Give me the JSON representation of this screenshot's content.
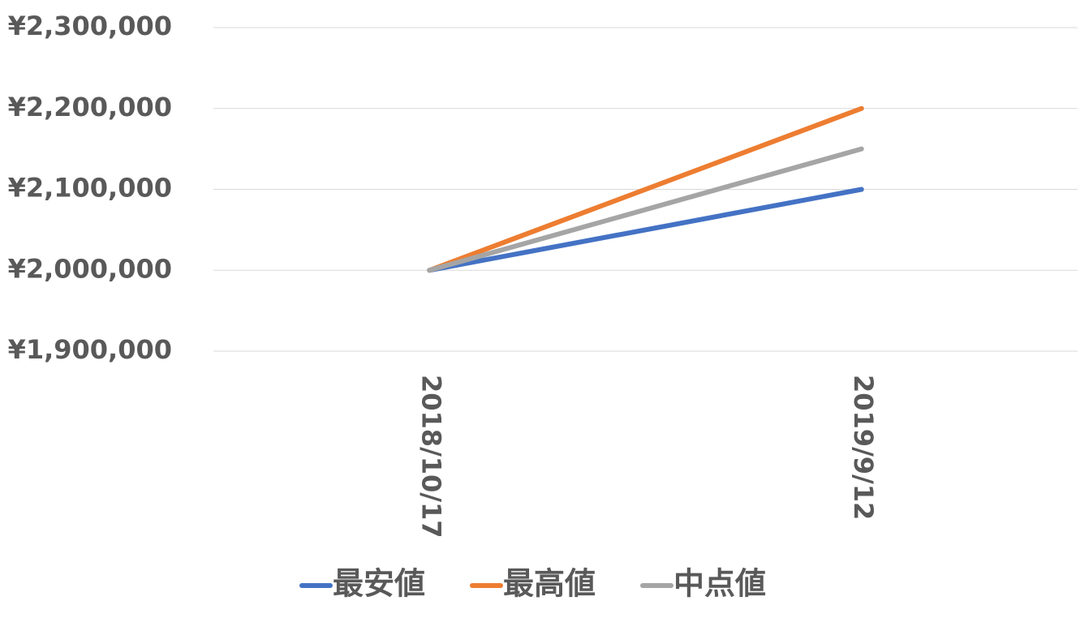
{
  "chart_data": {
    "type": "line",
    "categories": [
      "2018/10/17",
      "2019/9/12"
    ],
    "series": [
      {
        "name": "最安値",
        "color": "#4472c4",
        "values": [
          2000000,
          2100000
        ]
      },
      {
        "name": "最高値",
        "color": "#ed7d31",
        "values": [
          2000000,
          2200000
        ]
      },
      {
        "name": "中点値",
        "color": "#a5a5a5",
        "values": [
          2000000,
          2150000
        ]
      }
    ],
    "ylim": [
      1900000,
      2300000
    ],
    "yticks": [
      {
        "value": 1900000,
        "label": "¥1,900,000"
      },
      {
        "value": 2000000,
        "label": "¥2,000,000"
      },
      {
        "value": 2100000,
        "label": "¥2,100,000"
      },
      {
        "value": 2200000,
        "label": "¥2,200,000"
      },
      {
        "value": 2300000,
        "label": "¥2,300,000"
      }
    ],
    "grid": true,
    "legend": "bottom"
  }
}
